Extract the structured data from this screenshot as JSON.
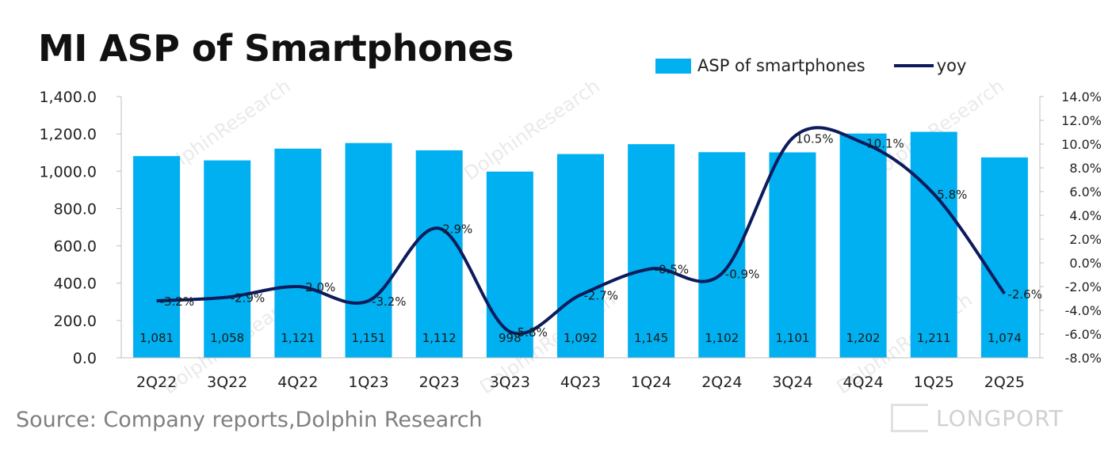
{
  "chart_data": {
    "type": "bar",
    "title": "MI ASP of Smartphones",
    "categories": [
      "2Q22",
      "3Q22",
      "4Q22",
      "1Q23",
      "2Q23",
      "3Q23",
      "4Q23",
      "1Q24",
      "2Q24",
      "3Q24",
      "4Q24",
      "1Q25",
      "2Q25"
    ],
    "series": [
      {
        "name": "ASP of smartphones",
        "type": "bar",
        "axis": "left",
        "color": "#00b0f0",
        "values": [
          1081,
          1058,
          1121,
          1151,
          1112,
          998,
          1092,
          1145,
          1102,
          1101,
          1202,
          1211,
          1074
        ],
        "labels": [
          "1,081",
          "1,058",
          "1,121",
          "1,151",
          "1,112",
          "998",
          "1,092",
          "1,145",
          "1,102",
          "1,101",
          "1,202",
          "1,211",
          "1,074"
        ]
      },
      {
        "name": "yoy",
        "type": "line",
        "axis": "right",
        "color": "#0d1b5c",
        "values": [
          -3.2,
          -2.9,
          -2.0,
          -3.2,
          2.9,
          -5.8,
          -2.7,
          -0.5,
          -0.9,
          10.5,
          10.1,
          5.8,
          -2.6
        ],
        "labels": [
          "-3.2%",
          "-2.9%",
          "-2.0%",
          "-3.2%",
          "2.9%",
          "-5.8%",
          "-2.7%",
          "-0.5%",
          "-0.9%",
          "10.5%",
          "10.1%",
          "5.8%",
          "-2.6%"
        ]
      }
    ],
    "y_left": {
      "min": 0,
      "max": 1400,
      "step": 200,
      "ticks": [
        "0.0",
        "200.0",
        "400.0",
        "600.0",
        "800.0",
        "1,000.0",
        "1,200.0",
        "1,400.0"
      ]
    },
    "y_right": {
      "min": -8,
      "max": 14,
      "step": 2,
      "ticks": [
        "-8.0%",
        "-6.0%",
        "-4.0%",
        "-2.0%",
        "0.0%",
        "2.0%",
        "4.0%",
        "6.0%",
        "8.0%",
        "10.0%",
        "12.0%",
        "14.0%"
      ]
    },
    "grid": false,
    "legend_position": "top-right",
    "source": "Source: Company reports,Dolphin Research"
  },
  "watermark": {
    "text": "DolphinResearch",
    "logo": "LONGPORT"
  }
}
